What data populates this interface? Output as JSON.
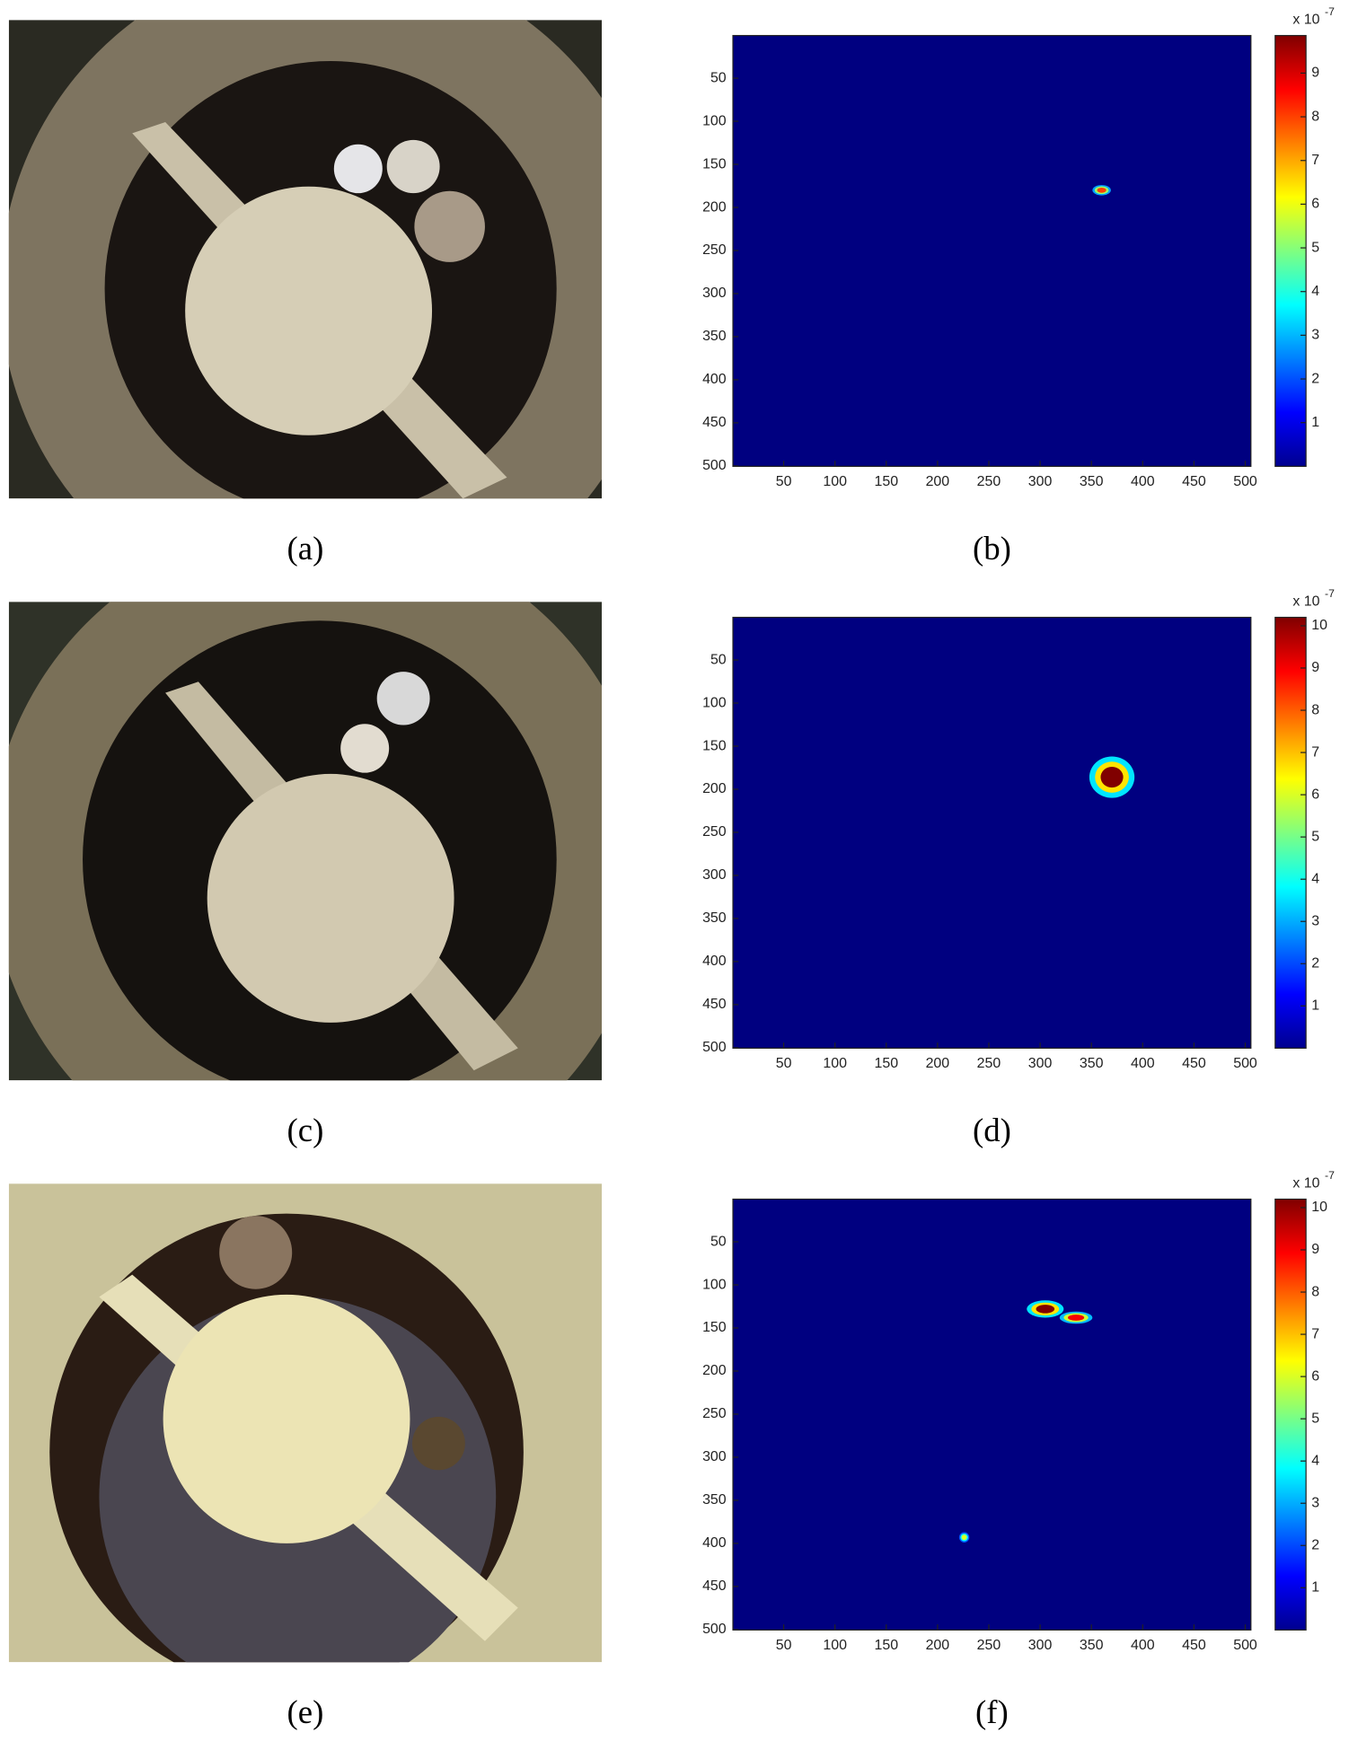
{
  "photo_labels": [
    "(a)",
    "(c)",
    "(e)"
  ],
  "chart_data": [
    {
      "type": "heatmap",
      "label": "(b)",
      "xlim": [
        0.5,
        505.5
      ],
      "ylim": [
        0.5,
        500.5
      ],
      "y_reversed": true,
      "xticks": [
        50,
        100,
        150,
        200,
        250,
        300,
        350,
        400,
        450,
        500
      ],
      "yticks": [
        50,
        100,
        150,
        200,
        250,
        300,
        350,
        400,
        450,
        500
      ],
      "clim": [
        0,
        9.86
      ],
      "cticks": [
        1,
        2,
        3,
        4,
        5,
        6,
        7,
        8,
        9
      ],
      "colorbar_label": "x 10",
      "colorbar_exponent": "-7",
      "colormap": "jet",
      "hotspots": [
        {
          "x": 360,
          "y": 180,
          "rx": 9,
          "ry": 6,
          "value": 8
        }
      ]
    },
    {
      "type": "heatmap",
      "label": "(d)",
      "xlim": [
        0.5,
        505.5
      ],
      "ylim": [
        0.5,
        500.5
      ],
      "y_reversed": true,
      "xticks": [
        50,
        100,
        150,
        200,
        250,
        300,
        350,
        400,
        450,
        500
      ],
      "yticks": [
        50,
        100,
        150,
        200,
        250,
        300,
        350,
        400,
        450,
        500
      ],
      "clim": [
        0,
        10.2
      ],
      "cticks": [
        1,
        2,
        3,
        4,
        5,
        6,
        7,
        8,
        9,
        10
      ],
      "colorbar_label": "x 10",
      "colorbar_exponent": "-7",
      "colormap": "jet",
      "hotspots": [
        {
          "x": 370,
          "y": 186,
          "rx": 22,
          "ry": 24,
          "value": 10.2
        }
      ]
    },
    {
      "type": "heatmap",
      "label": "(f)",
      "xlim": [
        0.5,
        505.5
      ],
      "ylim": [
        0.5,
        500.5
      ],
      "y_reversed": true,
      "xticks": [
        50,
        100,
        150,
        200,
        250,
        300,
        350,
        400,
        450,
        500
      ],
      "yticks": [
        50,
        100,
        150,
        200,
        250,
        300,
        350,
        400,
        450,
        500
      ],
      "clim": [
        0,
        10.2
      ],
      "cticks": [
        1,
        2,
        3,
        4,
        5,
        6,
        7,
        8,
        9,
        10
      ],
      "colorbar_label": "x 10",
      "colorbar_exponent": "-7",
      "colormap": "jet",
      "hotspots": [
        {
          "x": 305,
          "y": 128,
          "rx": 18,
          "ry": 10,
          "value": 10.2
        },
        {
          "x": 335,
          "y": 138,
          "rx": 16,
          "ry": 7,
          "value": 9
        },
        {
          "x": 226,
          "y": 393,
          "rx": 5,
          "ry": 6,
          "value": 6
        }
      ]
    }
  ]
}
